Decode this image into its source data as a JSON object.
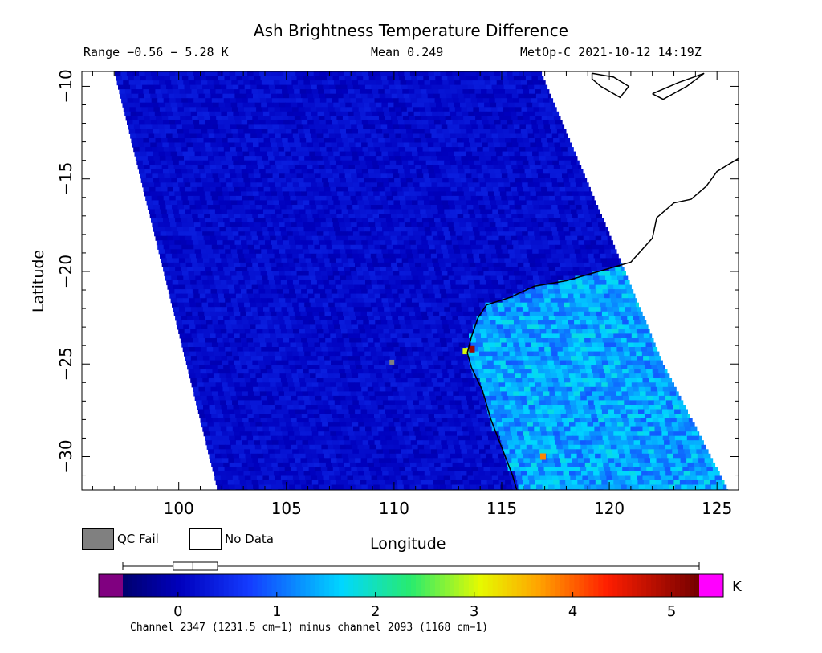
{
  "header": {
    "title": "Ash Brightness Temperature Difference",
    "range": "Range −0.56 − 5.28 K",
    "mean": "Mean 0.249",
    "satellite_time": "MetOp-C 2021-10-12 14:19Z"
  },
  "legend": {
    "qc_fail": "QC Fail",
    "no_data": "No Data",
    "qc_fail_color": "#808080",
    "no_data_color": "#ffffff"
  },
  "colorbar": {
    "unit": "K",
    "caption": "Channel 2347 (1231.5 cm−1) minus channel 2093 (1168 cm−1)",
    "ticks": [
      0,
      1,
      2,
      3,
      4,
      5
    ],
    "tick_labels": [
      "0",
      "1",
      "2",
      "3",
      "4",
      "5"
    ],
    "min": -0.56,
    "max": 5.28,
    "underflow_color": "#800080",
    "overflow_color": "#ff00ff",
    "box_whisker": {
      "whisker_low": -0.56,
      "q1": -0.05,
      "median": 0.15,
      "q3": 0.4,
      "whisker_high": 5.28
    }
  },
  "chart_data": {
    "type": "heatmap",
    "title": "Ash Brightness Temperature Difference",
    "xlabel": "Longitude",
    "ylabel": "Latitude",
    "xlim": [
      95.5,
      126
    ],
    "ylim": [
      -31.8,
      -9.2
    ],
    "xticks": [
      100,
      105,
      110,
      115,
      120,
      125
    ],
    "xtick_labels": [
      "100",
      "105",
      "110",
      "115",
      "120",
      "125"
    ],
    "yticks": [
      -10,
      -15,
      -20,
      -25,
      -30
    ],
    "ytick_labels": [
      "−10",
      "−15",
      "−20",
      "−25",
      "−30"
    ],
    "value_range": [
      -0.56,
      5.28
    ],
    "mean": 0.249,
    "unit": "K",
    "swath_edges": {
      "west": [
        [
          97.0,
          -9.2
        ],
        [
          101.8,
          -31.8
        ]
      ],
      "east": [
        [
          116.8,
          -9.2
        ],
        [
          120.0,
          -18.0
        ],
        [
          122.5,
          -25.0
        ],
        [
          125.5,
          -31.8
        ]
      ]
    },
    "ocean_level": 0.15,
    "land_level": 1.35,
    "coastline": [
      [
        126.0,
        -13.9
      ],
      [
        125.0,
        -14.6
      ],
      [
        124.5,
        -15.4
      ],
      [
        123.8,
        -16.1
      ],
      [
        123.0,
        -16.3
      ],
      [
        122.2,
        -17.1
      ],
      [
        122.0,
        -18.2
      ],
      [
        121.0,
        -19.5
      ],
      [
        119.5,
        -20.0
      ],
      [
        118.0,
        -20.5
      ],
      [
        116.5,
        -20.8
      ],
      [
        115.4,
        -21.4
      ],
      [
        114.3,
        -21.8
      ],
      [
        113.9,
        -22.5
      ],
      [
        113.6,
        -23.5
      ],
      [
        113.4,
        -24.4
      ],
      [
        113.6,
        -25.2
      ],
      [
        114.1,
        -26.4
      ],
      [
        114.5,
        -28.0
      ],
      [
        115.0,
        -29.5
      ],
      [
        115.5,
        -31.0
      ],
      [
        115.7,
        -31.8
      ]
    ],
    "islands": [
      [
        [
          119.2,
          -9.3
        ],
        [
          120.2,
          -9.5
        ],
        [
          120.9,
          -10.0
        ],
        [
          120.5,
          -10.6
        ],
        [
          119.6,
          -10.0
        ],
        [
          119.2,
          -9.6
        ],
        [
          119.2,
          -9.3
        ]
      ],
      [
        [
          122.0,
          -10.4
        ],
        [
          123.2,
          -9.8
        ],
        [
          124.4,
          -9.3
        ],
        [
          123.6,
          -10.0
        ],
        [
          122.5,
          -10.7
        ],
        [
          122.0,
          -10.4
        ]
      ]
    ],
    "qc_fail_points": [
      [
        109.9,
        -24.9
      ]
    ],
    "anomalies": [
      {
        "lon": 113.6,
        "lat": -24.2,
        "value": 5.0
      },
      {
        "lon": 113.3,
        "lat": -24.3,
        "value": 3.0
      },
      {
        "lon": 116.9,
        "lat": -30.0,
        "value": 3.8
      }
    ]
  }
}
